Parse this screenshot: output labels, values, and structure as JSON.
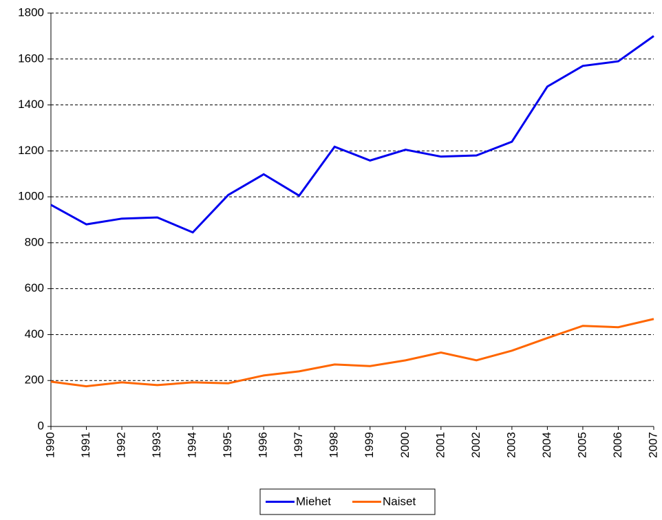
{
  "chart_data": {
    "type": "line",
    "categories": [
      "1990",
      "1991",
      "1992",
      "1993",
      "1994",
      "1995",
      "1996",
      "1997",
      "1998",
      "1999",
      "2000",
      "2001",
      "2002",
      "2003",
      "2004",
      "2005",
      "2006",
      "2007"
    ],
    "series": [
      {
        "name": "Miehet",
        "color": "#0000ee",
        "values": [
          965,
          880,
          905,
          910,
          845,
          1008,
          1098,
          1005,
          1218,
          1158,
          1205,
          1175,
          1180,
          1240,
          1480,
          1570,
          1590,
          1700
        ]
      },
      {
        "name": "Naiset",
        "color": "#ff6600",
        "values": [
          195,
          175,
          192,
          180,
          192,
          188,
          222,
          240,
          270,
          263,
          288,
          322,
          288,
          330,
          385,
          438,
          432,
          468
        ]
      }
    ],
    "ylim": [
      0,
      1800
    ],
    "yticks": [
      0,
      200,
      400,
      600,
      800,
      1000,
      1200,
      1400,
      1600,
      1800
    ],
    "grid": true,
    "legend": "bottom"
  }
}
